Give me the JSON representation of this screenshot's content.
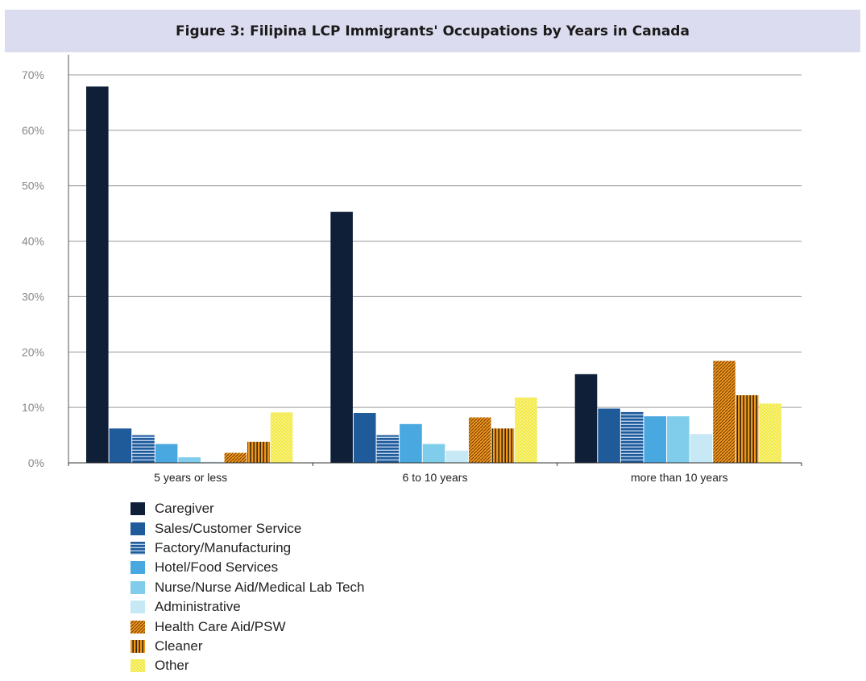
{
  "chart_data": {
    "type": "bar",
    "title": "Figure 3: Filipina LCP Immigrants' Occupations by Years in Canada",
    "xlabel": "",
    "ylabel": "",
    "ylim": [
      0,
      70
    ],
    "yticks": [
      "0%",
      "10%",
      "20%",
      "30%",
      "40%",
      "50%",
      "60%",
      "70%"
    ],
    "categories": [
      "5 years or less",
      "6 to 10 years",
      "more than 10 years"
    ],
    "grid": true,
    "legend_position": "bottom-left",
    "series": [
      {
        "name": "Caregiver",
        "values": [
          67.9,
          45.3,
          16.0
        ],
        "color": "#0f1f38",
        "pattern": "solid"
      },
      {
        "name": "Sales/Customer Service",
        "values": [
          6.2,
          9.0,
          9.8
        ],
        "color": "#1f5a9a",
        "pattern": "solid"
      },
      {
        "name": "Factory/Manufacturing",
        "values": [
          5.0,
          5.0,
          9.2
        ],
        "color": "#1f5a9a",
        "pattern": "hlines"
      },
      {
        "name": "Hotel/Food Services",
        "values": [
          3.4,
          7.0,
          8.4
        ],
        "color": "#4aa8e0",
        "pattern": "solid"
      },
      {
        "name": "Nurse/Nurse Aid/Medical Lab Tech",
        "values": [
          1.0,
          3.4,
          8.4
        ],
        "color": "#7fcdea",
        "pattern": "solid"
      },
      {
        "name": "Administrative",
        "values": [
          0.2,
          2.2,
          5.2
        ],
        "color": "#c7e8f5",
        "pattern": "solid"
      },
      {
        "name": "Health Care Aid/PSW",
        "values": [
          1.8,
          8.2,
          18.4
        ],
        "color": "#f0961e",
        "pattern": "diag"
      },
      {
        "name": "Cleaner",
        "values": [
          3.8,
          6.2,
          12.2
        ],
        "color": "#f0961e",
        "pattern": "vlines"
      },
      {
        "name": "Other",
        "values": [
          9.1,
          11.8,
          10.7
        ],
        "color": "#f2e83c",
        "pattern": "diag-light"
      }
    ]
  }
}
